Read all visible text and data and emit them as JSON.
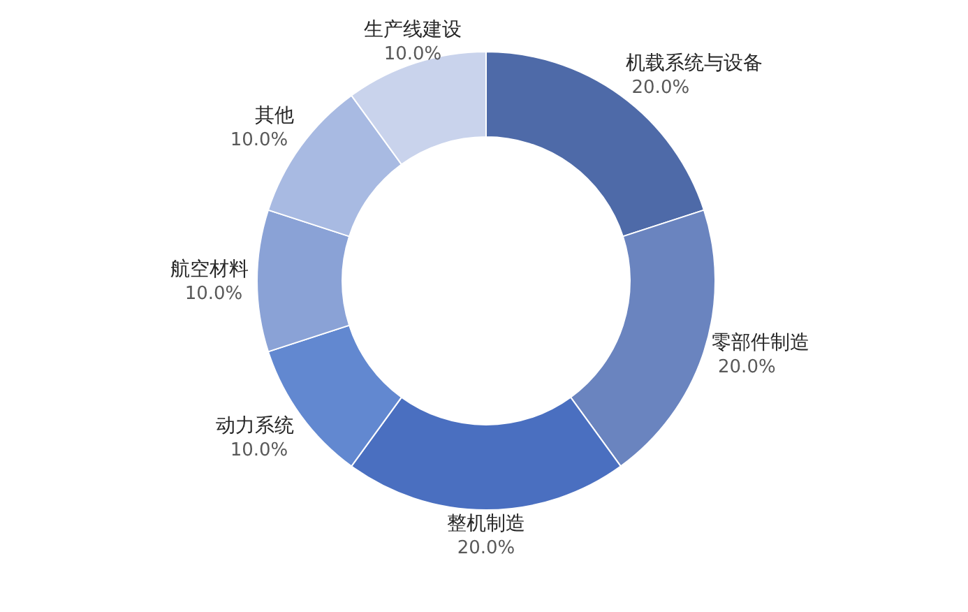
{
  "chart_data": {
    "type": "donut",
    "categories": [
      "机载系统与设备",
      "零部件制造",
      "整机制造",
      "动力系统",
      "航空材料",
      "其他",
      "生产线建设"
    ],
    "values": [
      20,
      20,
      20,
      10,
      10,
      10,
      10
    ],
    "value_labels": [
      "20.0%",
      "20.0%",
      "20.0%",
      "10.0%",
      "10.0%",
      "10.0%",
      "10.0%"
    ],
    "colors": [
      "#4e6aa8",
      "#6a84bf",
      "#4a6fc0",
      "#6288d0",
      "#8aa2d6",
      "#a8bae2",
      "#c9d3ec"
    ]
  }
}
